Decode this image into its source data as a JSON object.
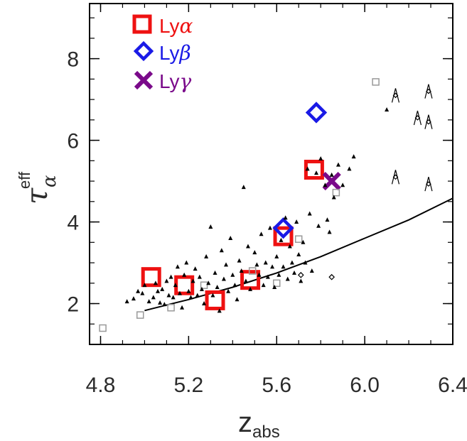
{
  "chart_data": {
    "type": "scatter",
    "title": "",
    "xlabel": {
      "main": "z",
      "sub": "abs"
    },
    "ylabel": {
      "main": "τ",
      "sup": "eff",
      "sub": "α"
    },
    "xlim": [
      4.75,
      6.4
    ],
    "ylim": [
      1.0,
      9.35
    ],
    "xticks": [
      "4.8",
      "5.2",
      "5.6",
      "6.0",
      "6.4"
    ],
    "yticks": [
      "2",
      "4",
      "6",
      "8"
    ],
    "xtick_values": [
      4.8,
      5.2,
      5.6,
      6.0,
      6.4
    ],
    "ytick_values": [
      2,
      4,
      6,
      8
    ],
    "legend": {
      "position": "top-left",
      "entries": [
        {
          "prefix": "Ly",
          "greek": "α",
          "color": "#ee1111",
          "marker": "square"
        },
        {
          "prefix": "Ly",
          "greek": "β",
          "color": "#1a1ae6",
          "marker": "diamond"
        },
        {
          "prefix": "Ly",
          "greek": "γ",
          "color": "#7a0a8a",
          "marker": "cross"
        }
      ]
    },
    "series": [
      {
        "marker": "square",
        "color": "#ee1111",
        "points": [
          [
            5.03,
            2.65
          ],
          [
            5.18,
            2.45
          ],
          [
            5.32,
            2.08
          ],
          [
            5.48,
            2.58
          ],
          [
            5.63,
            3.65
          ],
          [
            5.77,
            5.28
          ]
        ]
      },
      {
        "marker": "diamond",
        "color": "#1a1ae6",
        "points": [
          [
            5.63,
            3.85
          ],
          [
            5.78,
            6.68
          ]
        ]
      },
      {
        "marker": "cross",
        "color": "#7a0a8a",
        "points": [
          [
            5.85,
            5.0
          ]
        ]
      },
      {
        "marker": "small-square",
        "color": "#999999",
        "points": [
          [
            4.81,
            1.4
          ],
          [
            4.98,
            1.72
          ],
          [
            5.12,
            1.9
          ],
          [
            5.27,
            2.45
          ],
          [
            5.49,
            2.8
          ],
          [
            5.6,
            2.5
          ],
          [
            5.7,
            3.58
          ],
          [
            5.87,
            4.72
          ],
          [
            6.05,
            7.43
          ]
        ]
      },
      {
        "marker": "small-triangle",
        "color": "#000000",
        "points": [
          [
            4.92,
            2.05
          ],
          [
            4.95,
            2.12
          ],
          [
            4.97,
            2.3
          ],
          [
            4.99,
            2.25
          ],
          [
            5.0,
            2.45
          ],
          [
            5.02,
            2.05
          ],
          [
            5.04,
            2.15
          ],
          [
            5.05,
            2.5
          ],
          [
            5.06,
            2.3
          ],
          [
            5.07,
            2.02
          ],
          [
            5.08,
            2.35
          ],
          [
            5.09,
            1.98
          ],
          [
            5.1,
            2.55
          ],
          [
            5.11,
            2.2
          ],
          [
            5.12,
            2.65
          ],
          [
            5.13,
            2.15
          ],
          [
            5.14,
            2.45
          ],
          [
            5.15,
            2.9
          ],
          [
            5.16,
            2.25
          ],
          [
            5.17,
            1.9
          ],
          [
            5.18,
            2.7
          ],
          [
            5.19,
            3.0
          ],
          [
            5.2,
            2.3
          ],
          [
            5.21,
            2.15
          ],
          [
            5.22,
            2.55
          ],
          [
            5.23,
            2.85
          ],
          [
            5.24,
            2.2
          ],
          [
            5.25,
            2.65
          ],
          [
            5.26,
            2.35
          ],
          [
            5.27,
            2.0
          ],
          [
            5.28,
            3.15
          ],
          [
            5.29,
            2.5
          ],
          [
            5.3,
            3.88
          ],
          [
            5.31,
            2.2
          ],
          [
            5.32,
            2.75
          ],
          [
            5.33,
            2.4
          ],
          [
            5.34,
            1.82
          ],
          [
            5.35,
            3.3
          ],
          [
            5.36,
            2.6
          ],
          [
            5.37,
            2.95
          ],
          [
            5.38,
            2.3
          ],
          [
            5.39,
            3.6
          ],
          [
            5.4,
            2.7
          ],
          [
            5.41,
            2.45
          ],
          [
            5.42,
            2.1
          ],
          [
            5.43,
            3.05
          ],
          [
            5.44,
            2.8
          ],
          [
            5.45,
            4.85
          ],
          [
            5.46,
            2.55
          ],
          [
            5.47,
            3.4
          ],
          [
            5.48,
            2.35
          ],
          [
            5.5,
            3.25
          ],
          [
            5.51,
            2.95
          ],
          [
            5.52,
            2.7
          ],
          [
            5.53,
            3.7
          ],
          [
            5.54,
            2.45
          ],
          [
            5.55,
            3.0
          ],
          [
            5.56,
            2.65
          ],
          [
            5.57,
            3.85
          ],
          [
            5.58,
            2.9
          ],
          [
            5.59,
            2.4
          ],
          [
            5.6,
            3.15
          ],
          [
            5.61,
            2.7
          ],
          [
            5.62,
            3.55
          ],
          [
            5.63,
            2.9
          ],
          [
            5.64,
            4.1
          ],
          [
            5.65,
            2.6
          ],
          [
            5.66,
            3.4
          ],
          [
            5.67,
            3.0
          ],
          [
            5.68,
            2.75
          ],
          [
            5.69,
            4.0
          ],
          [
            5.7,
            3.2
          ],
          [
            5.71,
            2.55
          ],
          [
            5.72,
            3.5
          ],
          [
            5.73,
            3.0
          ],
          [
            5.74,
            5.3
          ],
          [
            5.75,
            4.2
          ],
          [
            5.76,
            2.8
          ],
          [
            5.78,
            5.2
          ],
          [
            5.79,
            3.9
          ],
          [
            5.8,
            5.55
          ],
          [
            5.82,
            4.9
          ],
          [
            5.83,
            4.05
          ],
          [
            5.84,
            3.75
          ],
          [
            5.85,
            5.15
          ],
          [
            5.86,
            4.6
          ],
          [
            5.88,
            5.4
          ],
          [
            5.9,
            4.9
          ],
          [
            5.93,
            5.3
          ],
          [
            5.95,
            5.6
          ],
          [
            6.1,
            6.75
          ]
        ]
      },
      {
        "marker": "small-diamond",
        "color": "#000000",
        "points": [
          [
            5.71,
            2.7
          ],
          [
            5.85,
            2.65
          ]
        ]
      },
      {
        "marker": "lower-limit",
        "color": "#000000",
        "points": [
          [
            6.14,
            7.1
          ],
          [
            6.14,
            5.1
          ],
          [
            6.24,
            6.55
          ],
          [
            6.29,
            7.2
          ],
          [
            6.29,
            6.45
          ],
          [
            6.29,
            4.93
          ]
        ]
      }
    ],
    "fit_curve": {
      "color": "#000000",
      "x": [
        5.0,
        5.2,
        5.4,
        5.6,
        5.8,
        6.0,
        6.2,
        6.4
      ],
      "y": [
        1.83,
        2.1,
        2.4,
        2.75,
        3.15,
        3.6,
        4.05,
        4.58
      ]
    }
  }
}
